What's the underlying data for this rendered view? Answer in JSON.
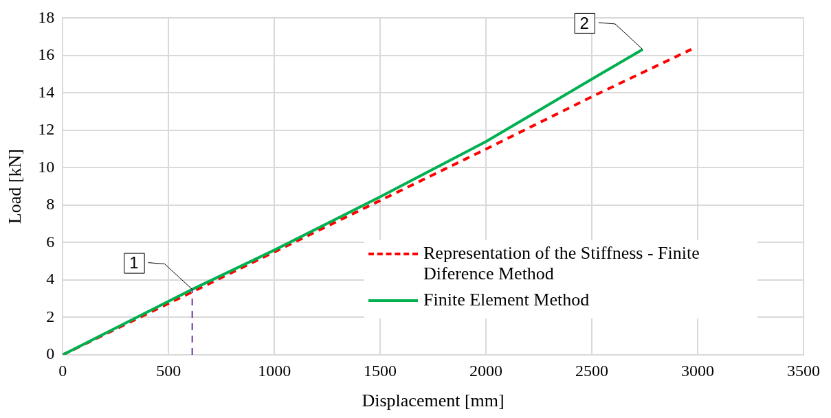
{
  "chart_data": {
    "type": "line",
    "xlabel": "Displacement [mm]",
    "ylabel": "Load [kN]",
    "xlim": [
      0,
      3500
    ],
    "xticks": [
      0,
      500,
      1000,
      1500,
      2000,
      2500,
      3000,
      3500
    ],
    "ylim": [
      0,
      18
    ],
    "yticks": [
      0,
      2,
      4,
      6,
      8,
      10,
      12,
      14,
      16,
      18
    ],
    "grid": true,
    "legend": "right",
    "marker": "none",
    "series": [
      {
        "name": "Representation  of the Stiffness - Finite Diference Method",
        "color": "#ff0000",
        "line_style": "dashed",
        "x": [
          0,
          1000,
          1500,
          2000,
          2500,
          2970
        ],
        "values": [
          0,
          5.5,
          8.25,
          11.0,
          13.8,
          16.33
        ]
      },
      {
        "name": "Finite Element Method",
        "color": "#00b050",
        "line_style": "solid",
        "x": [
          0,
          612,
          1000,
          1500,
          2000,
          2500,
          2740
        ],
        "values": [
          0,
          3.5,
          5.6,
          8.45,
          11.4,
          14.74,
          16.33
        ]
      },
      {
        "color": "#7030a0",
        "line_style": "dashed",
        "x": [
          612,
          612
        ],
        "values": [
          0,
          3.5
        ]
      }
    ],
    "annotations": [
      {
        "text": "1",
        "x": 612,
        "y": 3.5
      },
      {
        "text": "2",
        "x": 2740,
        "y": 16.33
      }
    ]
  }
}
